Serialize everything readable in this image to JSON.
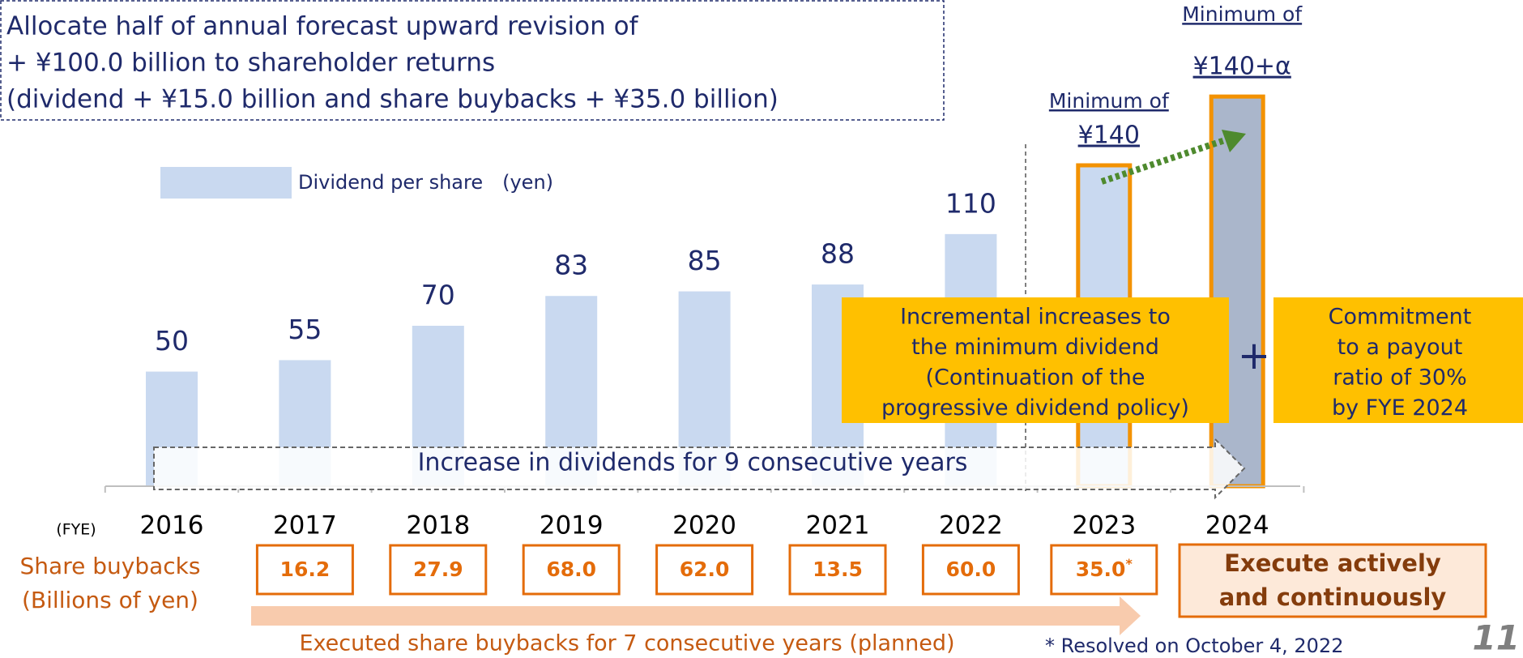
{
  "chart_data": {
    "type": "bar",
    "callout_lines": [
      "Allocate half of annual forecast upward revision of",
      "+ ¥100.0 billion to shareholder returns",
      "(dividend + ¥15.0 billion and share buybacks + ¥35.0 billion)"
    ],
    "legend": "Dividend per share　(yen)",
    "x_label": "(FYE)",
    "categories": [
      "2016",
      "2017",
      "2018",
      "2019",
      "2020",
      "2021",
      "2022",
      "2023",
      "2024"
    ],
    "values": [
      50,
      55,
      70,
      83,
      85,
      88,
      110,
      140,
      170
    ],
    "value_labels": [
      null,
      null,
      null,
      null,
      null,
      null,
      null,
      "¥140",
      null
    ],
    "bar_notes": [
      null,
      null,
      null,
      null,
      null,
      null,
      null,
      "Minimum of",
      "Minimum of"
    ],
    "bar_note_values": [
      null,
      null,
      null,
      null,
      null,
      null,
      null,
      null,
      "¥140+α"
    ],
    "colors": [
      "#c9d9f0",
      "#c9d9f0",
      "#c9d9f0",
      "#c9d9f0",
      "#c9d9f0",
      "#c9d9f0",
      "#c9d9f0",
      "#c9d9f0",
      "#aab6cb"
    ],
    "edge_colors": [
      null,
      null,
      null,
      null,
      null,
      null,
      null,
      "#f39200",
      "#f39200"
    ],
    "ylim": [
      0,
      175
    ],
    "grid": false,
    "arrow_text": "Increase in dividends for 9 consecutive years",
    "boxes": [
      {
        "lines": [
          "Incremental increases to",
          "the minimum dividend",
          "(Continuation of the",
          "progressive dividend policy)"
        ]
      },
      {
        "lines": [
          "Commitment",
          "to a payout",
          "ratio of 30%",
          "by FYE 2024"
        ]
      }
    ],
    "plus": "+",
    "buybacks": {
      "label": "Share buybacks",
      "unit": "(Billions of yen)",
      "labels": [
        null,
        "16.2",
        "27.9",
        "68.0",
        "62.0",
        "13.5",
        "60.0",
        "35.0",
        null
      ],
      "marks": [
        null,
        null,
        null,
        null,
        null,
        null,
        null,
        "*",
        null
      ],
      "last_lines": [
        "Execute actively",
        "and continuously"
      ],
      "arrow_text": "Executed share buybacks for 7 consecutive years (planned)",
      "footnote": "* Resolved on October 4, 2022"
    },
    "page_number": "11"
  }
}
